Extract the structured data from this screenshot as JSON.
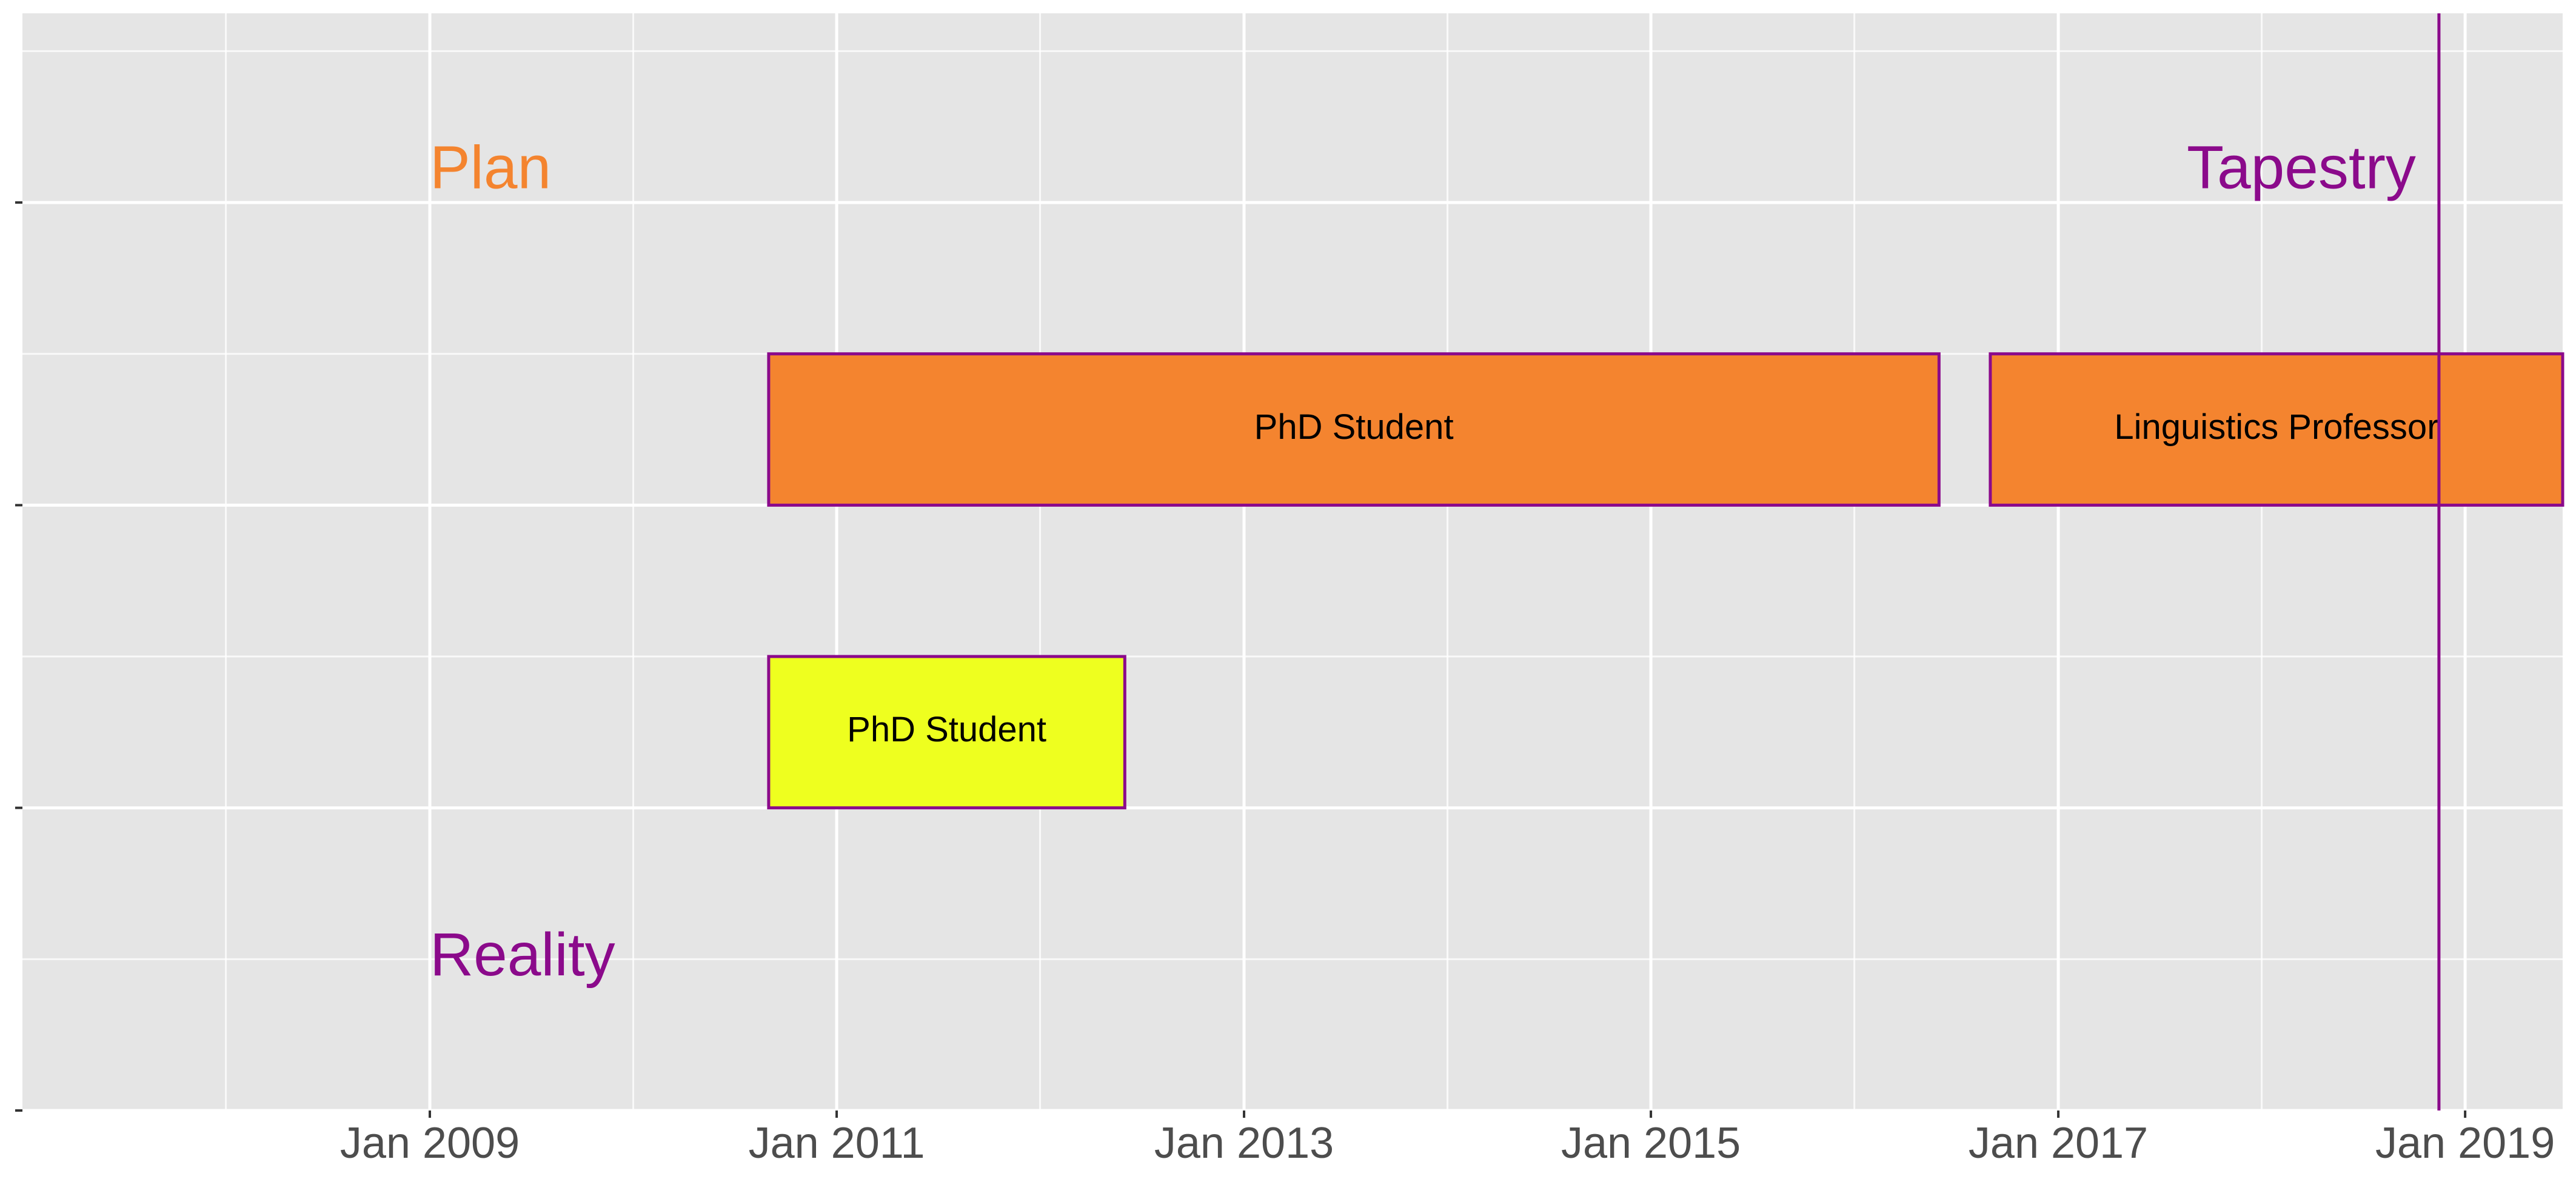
{
  "chart_data": {
    "type": "timeline",
    "title": "",
    "xlabel": "",
    "ylabel": "",
    "x_axis": {
      "type": "date",
      "range": [
        "2007-01-01",
        "2019-06-25"
      ],
      "ticks": [
        {
          "date": "2009-01-01",
          "label": "Jan 2009"
        },
        {
          "date": "2011-01-01",
          "label": "Jan 2011"
        },
        {
          "date": "2013-01-01",
          "label": "Jan 2013"
        },
        {
          "date": "2015-01-01",
          "label": "Jan 2015"
        },
        {
          "date": "2017-01-01",
          "label": "Jan 2017"
        },
        {
          "date": "2019-01-01",
          "label": "Jan 2019"
        }
      ],
      "minor_ticks": [
        "2008-01-01",
        "2010-01-01",
        "2012-01-01",
        "2014-01-01",
        "2016-01-01",
        "2018-01-01"
      ]
    },
    "y_axis": {
      "range": [
        0,
        7.25
      ],
      "ticks": [
        0,
        2,
        4,
        6
      ],
      "tick_labels_shown": false
    },
    "grid": true,
    "panel_color": "#e5e5e5",
    "gridline_color": "#ffffff",
    "bars": [
      {
        "label": "PhD Student",
        "row": "Plan",
        "start": "2010-09-01",
        "end": "2016-06-01",
        "y_min": 4,
        "y_max": 5,
        "fill": "#f4842f",
        "stroke": "#8b0a8b"
      },
      {
        "label": "Linguistics Professor",
        "row": "Plan",
        "start": "2016-09-01",
        "end": "2019-06-25",
        "y_min": 4,
        "y_max": 5,
        "fill": "#f4842f",
        "stroke": "#8b0a8b"
      },
      {
        "label": "PhD Student",
        "row": "Reality",
        "start": "2010-09-01",
        "end": "2012-06-01",
        "y_min": 2,
        "y_max": 3,
        "fill": "#eeff1f",
        "stroke": "#8b0a8b"
      }
    ],
    "annotations": [
      {
        "text": "Plan",
        "x": "2009-01-01",
        "y": 6.2,
        "color": "#f4842f"
      },
      {
        "text": "Tapestry",
        "x": "2018-11-01",
        "y": 6.2,
        "color": "#8b0a8b"
      },
      {
        "text": "Reality",
        "x": "2009-01-01",
        "y": 1.0,
        "color": "#8b0a8b"
      }
    ],
    "reference_lines": [
      {
        "orientation": "vertical",
        "x": "2018-11-15",
        "color": "#8b0a8b"
      }
    ]
  }
}
